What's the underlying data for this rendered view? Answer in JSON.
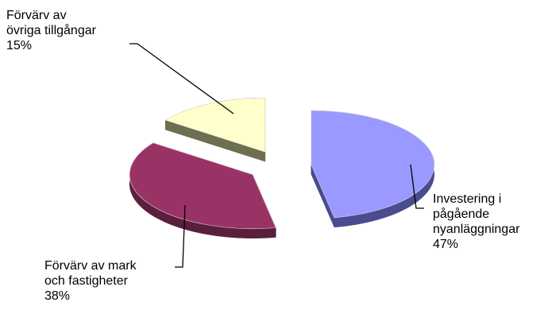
{
  "chart_data": {
    "type": "pie",
    "style": "3d-exploded",
    "legend": "none",
    "categories": [
      "Investering i pågående nyanläggningar",
      "Förvärv av mark och fastigheter",
      "Förvärv av övriga tillgångar"
    ],
    "values": [
      47,
      38,
      15
    ],
    "unit": "%",
    "colors": [
      "#9999ff",
      "#993366",
      "#ffffcc"
    ],
    "side_colors": [
      "#4b4b8f",
      "#5a1f3c",
      "#6e6e50"
    ],
    "labels": [
      {
        "lines": [
          "Investering i",
          "pågående",
          "nyanläggningar"
        ],
        "percent": "47%"
      },
      {
        "lines": [
          "Förvärv av mark",
          "och fastigheter"
        ],
        "percent": "38%"
      },
      {
        "lines": [
          "Förvärv av",
          "övriga tillgångar"
        ],
        "percent": "15%"
      }
    ]
  }
}
